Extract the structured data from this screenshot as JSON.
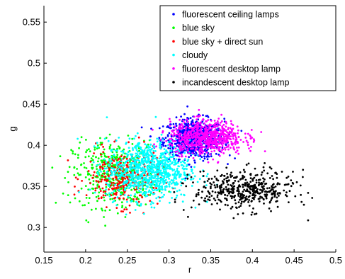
{
  "chart_data": {
    "type": "scatter",
    "xlabel": "r",
    "ylabel": "g",
    "xlim": [
      0.15,
      0.5
    ],
    "ylim": [
      0.27,
      0.57
    ],
    "xticks": [
      "0.15",
      "0.2",
      "0.25",
      "0.3",
      "0.35",
      "0.4",
      "0.45",
      "0.5"
    ],
    "xtick_values": [
      0.15,
      0.2,
      0.25,
      0.3,
      0.35,
      0.4,
      0.45,
      0.5
    ],
    "yticks": [
      "0.3",
      "0.35",
      "0.4",
      "0.45",
      "0.5",
      "0.55"
    ],
    "ytick_values": [
      0.3,
      0.35,
      0.4,
      0.45,
      0.5,
      0.55
    ],
    "grid": false,
    "legend_position": "top-right",
    "series": [
      {
        "name": "fluorescent ceiling lamps",
        "color": "#0000ff",
        "center": [
          0.33,
          0.408
        ],
        "spread": [
          0.018,
          0.012
        ],
        "count": 700
      },
      {
        "name": "blue sky",
        "color": "#00ff00",
        "center": [
          0.235,
          0.365
        ],
        "spread": [
          0.025,
          0.02
        ],
        "count": 450
      },
      {
        "name": "blue sky + direct sun",
        "color": "#ff0000",
        "center": [
          0.245,
          0.36
        ],
        "spread": [
          0.022,
          0.017
        ],
        "count": 300
      },
      {
        "name": "cloudy",
        "color": "#00ffff",
        "center": [
          0.275,
          0.37
        ],
        "spread": [
          0.025,
          0.018
        ],
        "count": 900
      },
      {
        "name": "fluorescent desktop lamp",
        "color": "#ff00ff",
        "center": [
          0.345,
          0.41
        ],
        "spread": [
          0.022,
          0.01
        ],
        "count": 700
      },
      {
        "name": "incandescent desktop lamp",
        "color": "#000000",
        "center": [
          0.39,
          0.345
        ],
        "spread": [
          0.03,
          0.012
        ],
        "count": 450
      }
    ]
  }
}
